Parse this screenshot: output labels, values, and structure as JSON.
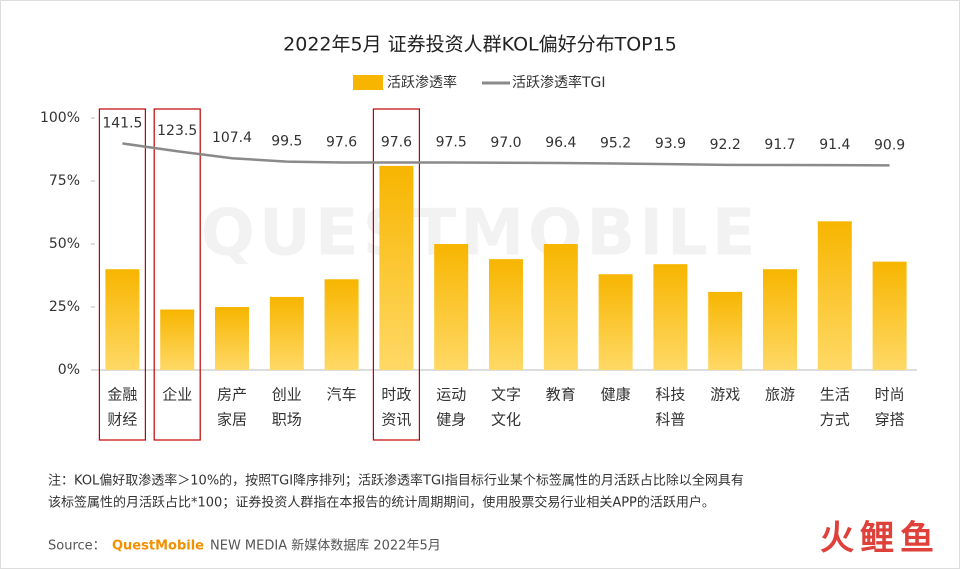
{
  "chart_data": {
    "type": "bar_line",
    "title": "2022年5月 证券投资人群KOL偏好分布TOP15",
    "categories": [
      [
        "金融",
        "财经"
      ],
      [
        "企业"
      ],
      [
        "房产",
        "家居"
      ],
      [
        "创业",
        "职场"
      ],
      [
        "汽车"
      ],
      [
        "时政",
        "资讯"
      ],
      [
        "运动",
        "健身"
      ],
      [
        "文字",
        "文化"
      ],
      [
        "教育"
      ],
      [
        "健康"
      ],
      [
        "科技",
        "科普"
      ],
      [
        "游戏"
      ],
      [
        "旅游"
      ],
      [
        "生活",
        "方式"
      ],
      [
        "时尚",
        "穿搭"
      ]
    ],
    "series": [
      {
        "name": "活跃渗透率",
        "type": "bar",
        "color": "#f7b500",
        "values": [
          40,
          24,
          25,
          29,
          36,
          81,
          50,
          44,
          50,
          38,
          42,
          31,
          40,
          59,
          43
        ]
      },
      {
        "name": "活跃渗透率TGI",
        "type": "line",
        "axis": "y2",
        "color": "#8a8a8a",
        "values": [
          141.5,
          123.5,
          107.4,
          99.5,
          97.6,
          97.6,
          97.5,
          97.0,
          96.4,
          95.2,
          93.9,
          92.2,
          91.7,
          91.4,
          90.9
        ],
        "value_labels": [
          "141.5",
          "123.5",
          "107.4",
          "99.5",
          "97.6",
          "97.6",
          "97.5",
          "97.0",
          "96.4",
          "95.2",
          "93.9",
          "92.2",
          "91.7",
          "91.4",
          "90.9"
        ]
      }
    ],
    "ylim": [
      0,
      100
    ],
    "yticks": [
      {
        "value": 0,
        "label": "0%"
      },
      {
        "value": 25,
        "label": "25%"
      },
      {
        "value": 50,
        "label": "50%"
      },
      {
        "value": 75,
        "label": "75%"
      },
      {
        "value": 100,
        "label": "100%"
      }
    ],
    "y2lim": [
      -380,
      200
    ],
    "highlight": [
      0,
      1,
      5
    ],
    "watermark": "QUESTMOBILE",
    "notes": [
      "注：KOL偏好取渗透率＞10%的，按照TGI降序排列；活跃渗透率TGI指目标行业某个标签属性的月活跃占比除以全网具有",
      "该标签属性的月活跃占比*100；证券投资人群指在本报告的统计周期期间，使用股票交易行业相关APP的活跃用户。"
    ],
    "source": {
      "label": "Source：",
      "brand": "QuestMobile",
      "text": "NEW MEDIA 新媒体数据库  2022年5月"
    },
    "logo": "火鲤鱼"
  }
}
